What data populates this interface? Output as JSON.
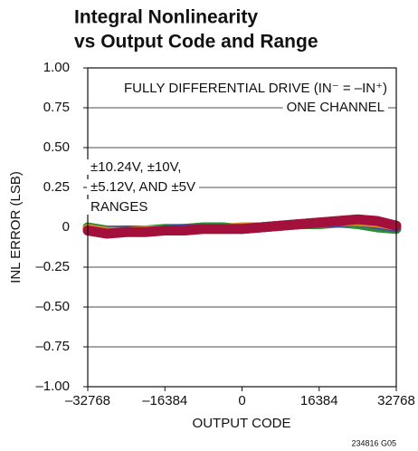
{
  "chart_data": {
    "type": "line",
    "title": [
      "Integral Nonlinearity",
      "vs Output Code and Range"
    ],
    "x_label": "OUTPUT CODE",
    "y_label": "INL ERROR (LSB)",
    "annotations": [
      "FULLY DIFFERENTIAL DRIVE (IN⁻ = –IN⁺)",
      "ONE CHANNEL",
      "±10.24V, ±10V,",
      "±5.12V, AND ±5V",
      "RANGES"
    ],
    "footnote": "234816 G05",
    "xlim": [
      -32768,
      32768
    ],
    "xticks": [
      {
        "value": -32768,
        "label": "–32768"
      },
      {
        "value": -16384,
        "label": "–16384"
      },
      0,
      16384,
      32768
    ],
    "ylim": [
      -1,
      1
    ],
    "yticks": [
      {
        "value": 1,
        "label": "1.00"
      },
      0.75,
      {
        "value": 0.5,
        "label": "0.50"
      },
      0.25,
      0,
      {
        "value": -0.25,
        "label": "–0.25"
      },
      {
        "value": -0.5,
        "label": "–0.50"
      },
      {
        "value": -0.75,
        "label": "–0.75"
      },
      {
        "value": -1,
        "label": "–1.00"
      }
    ],
    "grid": true,
    "x": [
      -32768,
      -28672,
      -24576,
      -20480,
      -16384,
      -12288,
      -8192,
      -4096,
      0,
      4096,
      8192,
      12288,
      16384,
      20480,
      24576,
      28672,
      32768
    ],
    "series": [
      {
        "color": "#2e8b3a",
        "values": [
          0.0,
          -0.02,
          -0.02,
          -0.02,
          -0.01,
          -0.01,
          0.0,
          0.0,
          -0.01,
          0.0,
          0.01,
          0.02,
          0.02,
          0.03,
          0.02,
          0.0,
          -0.01
        ]
      },
      {
        "color": "#3a4fa0",
        "values": [
          -0.01,
          -0.03,
          -0.02,
          -0.02,
          -0.02,
          -0.01,
          -0.01,
          -0.01,
          -0.01,
          0.0,
          0.01,
          0.02,
          0.03,
          0.03,
          0.04,
          0.02,
          0.0
        ]
      },
      {
        "color": "#d98a2a",
        "values": [
          -0.01,
          -0.03,
          -0.03,
          -0.02,
          -0.02,
          -0.02,
          -0.01,
          -0.01,
          0.0,
          0.0,
          0.01,
          0.02,
          0.03,
          0.04,
          0.04,
          0.03,
          0.01
        ]
      },
      {
        "color": "#a3103c",
        "values": [
          -0.02,
          -0.04,
          -0.03,
          -0.03,
          -0.02,
          -0.02,
          -0.01,
          -0.01,
          -0.01,
          0.0,
          0.01,
          0.02,
          0.03,
          0.04,
          0.05,
          0.04,
          0.01
        ]
      }
    ]
  }
}
